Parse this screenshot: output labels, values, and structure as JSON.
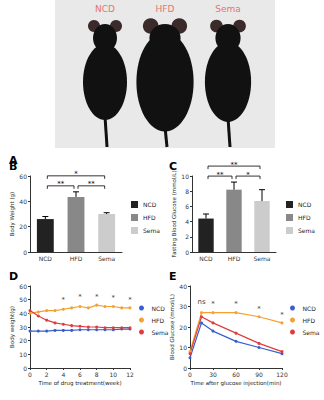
{
  "chart_data": [
    {
      "type": "image",
      "title": "A",
      "labels": [
        "NCD",
        "HFD",
        "Sema"
      ],
      "color": "#e8736f"
    },
    {
      "type": "bar",
      "title": "B",
      "ylabel": "Body Weight (g)",
      "categories": [
        "NCD",
        "HFD",
        "Sema"
      ],
      "values": [
        26,
        43.5,
        30
      ],
      "errors": [
        2,
        4,
        1
      ],
      "colors": [
        "#222222",
        "#888888",
        "#cccccc"
      ],
      "ylim": [
        0,
        60
      ],
      "yticks": [
        0,
        20,
        40,
        60
      ],
      "grid": false,
      "legend": "right",
      "annotations": [
        {
          "from": "NCD",
          "to": "HFD",
          "text": "**"
        },
        {
          "from": "HFD",
          "to": "Sema",
          "text": "**"
        },
        {
          "from": "NCD",
          "to": "Sema",
          "text": "*"
        }
      ]
    },
    {
      "type": "bar",
      "title": "C",
      "ylabel": "Fasting Blood Glucose (mmol/L)",
      "categories": [
        "NCD",
        "HFD",
        "Sema"
      ],
      "values": [
        4.4,
        8.2,
        6.7
      ],
      "errors": [
        0.6,
        1.0,
        1.5
      ],
      "colors": [
        "#222222",
        "#888888",
        "#cccccc"
      ],
      "ylim": [
        0,
        10
      ],
      "yticks": [
        0,
        2,
        4,
        6,
        8,
        10
      ],
      "grid": false,
      "legend": "right",
      "annotations": [
        {
          "from": "NCD",
          "to": "HFD",
          "text": "**"
        },
        {
          "from": "HFD",
          "to": "Sema",
          "text": "*"
        },
        {
          "from": "NCD",
          "to": "Sema",
          "text": "**"
        }
      ]
    },
    {
      "type": "line",
      "title": "D",
      "xlabel": "Time of drug treatment(week)",
      "ylabel": "Body weight(g)",
      "x": [
        0,
        1,
        2,
        3,
        4,
        5,
        6,
        7,
        8,
        9,
        10,
        11,
        12
      ],
      "series": [
        {
          "name": "NCD",
          "color": "#3a5fcd",
          "values": [
            27,
            27,
            27,
            27.5,
            27.5,
            27.5,
            28,
            28,
            28,
            28,
            28,
            28.5,
            28.5
          ]
        },
        {
          "name": "HFD",
          "color": "#f5a030",
          "values": [
            40,
            41,
            42,
            42,
            43,
            44,
            45,
            44,
            46,
            45,
            45,
            44,
            44
          ]
        },
        {
          "name": "Sema",
          "color": "#e03c3c",
          "values": [
            42,
            38,
            35,
            33,
            32,
            31,
            30.5,
            30,
            30,
            29.5,
            29.5,
            29.5,
            29.5
          ]
        }
      ],
      "xlim": [
        0,
        12
      ],
      "xticks": [
        0,
        2,
        4,
        6,
        8,
        10,
        12
      ],
      "ylim": [
        0,
        60
      ],
      "yticks": [
        0,
        10,
        20,
        30,
        40,
        50,
        60
      ],
      "grid": false,
      "legend": "right",
      "marker": "circle",
      "annotations": [
        {
          "x": 4,
          "y": 50,
          "text": "*"
        },
        {
          "x": 6,
          "y": 52,
          "text": "*"
        },
        {
          "x": 8,
          "y": 52,
          "text": "*"
        },
        {
          "x": 10,
          "y": 51,
          "text": "*"
        },
        {
          "x": 12,
          "y": 50,
          "text": "*"
        }
      ]
    },
    {
      "type": "line",
      "title": "E",
      "xlabel": "Time after glucose injection(min)",
      "ylabel": "Blood Glucose (mmol/L)",
      "x": [
        0,
        15,
        30,
        60,
        90,
        120
      ],
      "series": [
        {
          "name": "NCD",
          "color": "#3a5fcd",
          "values": [
            5,
            22,
            18,
            13,
            10,
            7
          ]
        },
        {
          "name": "HFD",
          "color": "#f5a030",
          "values": [
            8,
            27,
            27,
            27,
            25,
            22
          ]
        },
        {
          "name": "Sema",
          "color": "#e03c3c",
          "values": [
            7,
            25,
            22,
            17,
            12,
            8
          ]
        }
      ],
      "xlim": [
        0,
        120
      ],
      "xticks": [
        0,
        30,
        60,
        90,
        120
      ],
      "ylim": [
        0,
        40
      ],
      "yticks": [
        0,
        10,
        20,
        30,
        40
      ],
      "grid": false,
      "legend": "right",
      "marker": "circle",
      "annotations": [
        {
          "x": 15,
          "y": 32,
          "text": "ns"
        },
        {
          "x": 30,
          "y": 31,
          "text": "*"
        },
        {
          "x": 60,
          "y": 31,
          "text": "*"
        },
        {
          "x": 90,
          "y": 29,
          "text": "*"
        },
        {
          "x": 120,
          "y": 26,
          "text": "*"
        }
      ]
    }
  ]
}
